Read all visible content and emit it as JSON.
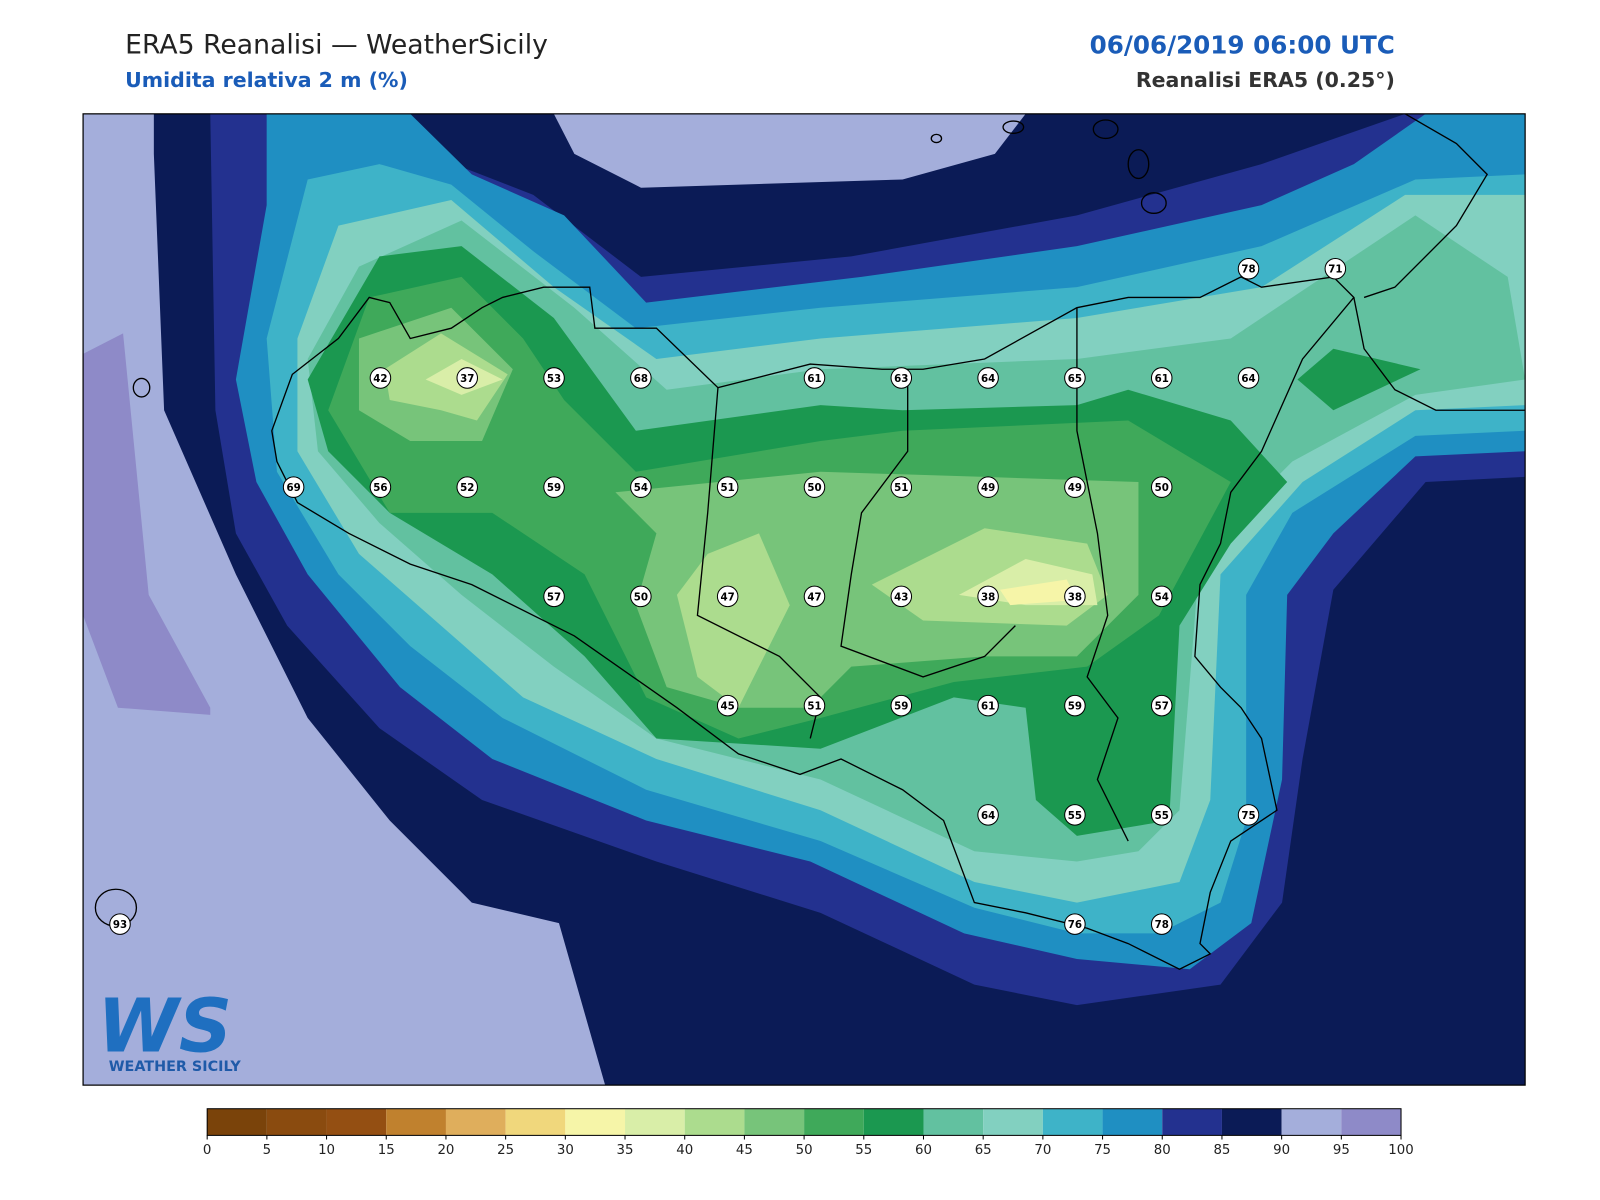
{
  "header": {
    "title": "ERA5 Reanalisi — WeatherSicily",
    "subtitle": "Umidita relativa 2 m (%)",
    "datetime": "06/06/2019 06:00 UTC",
    "source": "Reanalisi ERA5 (0.25°)"
  },
  "stations": {
    "values": [
      78,
      71,
      42,
      37,
      53,
      68,
      61,
      63,
      64,
      65,
      61,
      64,
      69,
      56,
      52,
      59,
      54,
      51,
      50,
      51,
      49,
      49,
      50,
      57,
      50,
      47,
      47,
      43,
      38,
      38,
      54,
      45,
      51,
      59,
      61,
      59,
      57,
      64,
      55,
      55,
      75,
      93,
      76,
      78
    ]
  },
  "colorbar": {
    "ticks": [
      0,
      5,
      10,
      15,
      20,
      25,
      30,
      35,
      40,
      45,
      50,
      55,
      60,
      65,
      70,
      75,
      80,
      85,
      90,
      95,
      100
    ],
    "colors": [
      "#7a430a",
      "#8a4b0f",
      "#944f12",
      "#c0812e",
      "#dfae5c",
      "#f0d77c",
      "#f6f5a8",
      "#d9eea8",
      "#acdc8e",
      "#77c47a",
      "#3fa95a",
      "#1b9850",
      "#62c1a0",
      "#82d0c0",
      "#3eb3c8",
      "#1f8fc2",
      "#23318f",
      "#0b1b56",
      "#a4aedb",
      "#8e8ac8"
    ]
  },
  "logo": {
    "mark": "WS",
    "name": "WEATHER SICILY"
  }
}
